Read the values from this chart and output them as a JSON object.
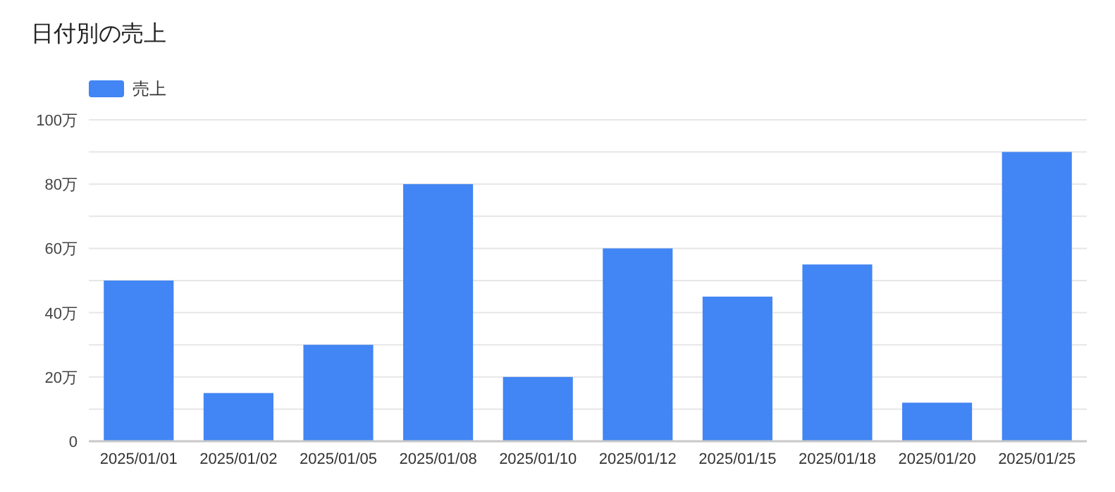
{
  "chart_data": {
    "type": "bar",
    "title": "日付別の売上",
    "categories": [
      "2025/01/01",
      "2025/01/02",
      "2025/01/05",
      "2025/01/08",
      "2025/01/10",
      "2025/01/12",
      "2025/01/15",
      "2025/01/18",
      "2025/01/20",
      "2025/01/25"
    ],
    "series": [
      {
        "name": "売上",
        "color": "#4285f4",
        "values": [
          50,
          15,
          30,
          80,
          20,
          60,
          45,
          55,
          12,
          90
        ]
      }
    ],
    "ylim": [
      0,
      100
    ],
    "yticks": [
      0,
      {
        "value": 10,
        "label": null
      },
      {
        "value": 20,
        "label": "20万"
      },
      {
        "value": 30,
        "label": null
      },
      {
        "value": 40,
        "label": "40万"
      },
      {
        "value": 50,
        "label": null
      },
      {
        "value": 60,
        "label": "60万"
      },
      {
        "value": 70,
        "label": null
      },
      {
        "value": 80,
        "label": "80万"
      },
      {
        "value": 90,
        "label": null
      },
      {
        "value": 100,
        "label": "100万"
      }
    ],
    "grid": "y",
    "legend": "top left"
  }
}
